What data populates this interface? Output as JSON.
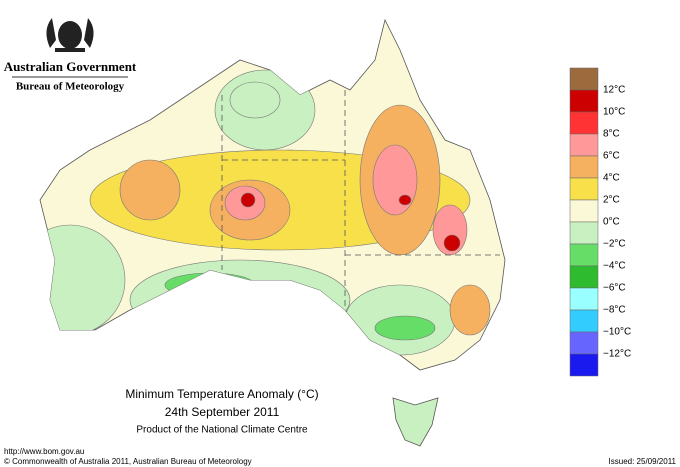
{
  "header": {
    "government": "Australian Government",
    "bureau": "Bureau of Meteorology"
  },
  "map": {
    "title": "Minimum Temperature Anomaly (°C)",
    "date": "24th September 2011",
    "subtitle": "Product of the National Climate Centre"
  },
  "legend": {
    "colors": [
      "#9c6a3c",
      "#cc0000",
      "#ff3333",
      "#ff9999",
      "#f5b060",
      "#f7e04a",
      "#fbf8d8",
      "#c8f0c0",
      "#66dd66",
      "#2fbb2f",
      "#99ffff",
      "#33ccff",
      "#6666ff",
      "#1a1aee"
    ],
    "labels": [
      "12°C",
      "10°C",
      "8°C",
      "6°C",
      "4°C",
      "2°C",
      "0°C",
      "−2°C",
      "−4°C",
      "−6°C",
      "−8°C",
      "−10°C",
      "−12°C"
    ]
  },
  "footer": {
    "url": "http://www.bom.gov.au",
    "copyright": "© Commonwealth of Australia 2011, Australian Bureau of Meteorology",
    "issued": "Issued: 25/09/2011"
  }
}
